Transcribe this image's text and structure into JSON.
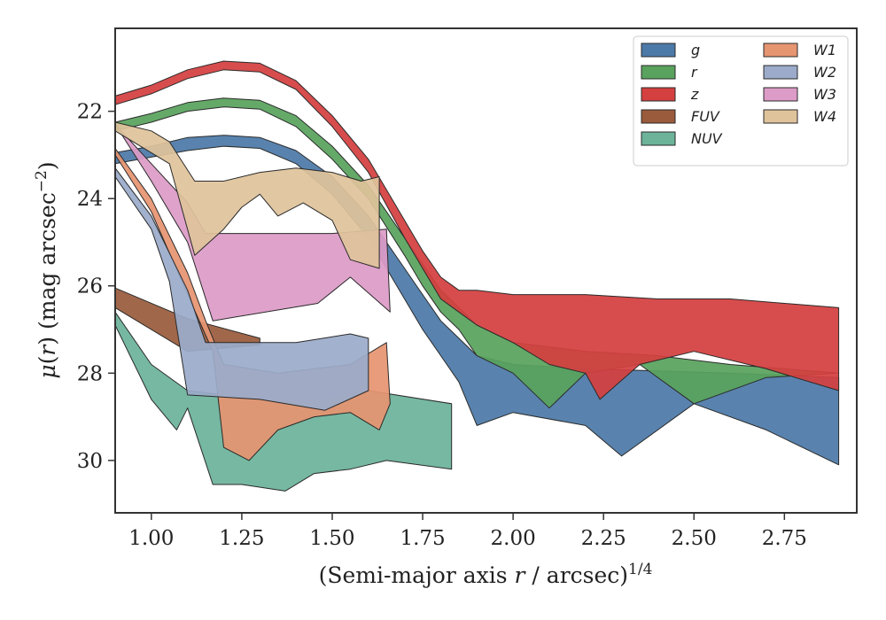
{
  "chart_data": {
    "type": "area",
    "xlabel": "(Semi-major axis r / arcsec)1/4",
    "ylabel": "μ(r) (mag arcsec−2)",
    "xlim": [
      0.9,
      2.95
    ],
    "ylim": [
      31.2,
      20.1
    ],
    "y_inverted": true,
    "xticks": [
      1.0,
      1.25,
      1.5,
      1.75,
      2.0,
      2.25,
      2.5,
      2.75
    ],
    "xtick_labels": [
      "1.00",
      "1.25",
      "1.50",
      "1.75",
      "2.00",
      "2.25",
      "2.50",
      "2.75"
    ],
    "yticks": [
      22,
      24,
      26,
      28,
      30
    ],
    "ytick_labels": [
      "22",
      "24",
      "26",
      "28",
      "30"
    ],
    "grid": false,
    "legend_position": "top-right",
    "legend_columns": 2,
    "series": [
      {
        "name": "g",
        "color": "#4c7aa8",
        "upper": [
          [
            0.9,
            22.95
          ],
          [
            1.0,
            22.8
          ],
          [
            1.1,
            22.6
          ],
          [
            1.2,
            22.55
          ],
          [
            1.3,
            22.6
          ],
          [
            1.4,
            22.9
          ],
          [
            1.5,
            23.5
          ],
          [
            1.6,
            24.4
          ],
          [
            1.7,
            25.6
          ],
          [
            1.75,
            26.2
          ],
          [
            1.8,
            26.8
          ],
          [
            1.85,
            27.2
          ],
          [
            1.9,
            27.6
          ],
          [
            2.0,
            27.8
          ],
          [
            2.2,
            27.9
          ],
          [
            2.4,
            27.95
          ],
          [
            2.6,
            28.0
          ],
          [
            2.9,
            28.1
          ]
        ],
        "lower": [
          [
            0.9,
            23.2
          ],
          [
            1.0,
            23.05
          ],
          [
            1.1,
            22.9
          ],
          [
            1.2,
            22.8
          ],
          [
            1.3,
            22.85
          ],
          [
            1.4,
            23.2
          ],
          [
            1.5,
            23.9
          ],
          [
            1.6,
            24.9
          ],
          [
            1.7,
            26.3
          ],
          [
            1.75,
            27.0
          ],
          [
            1.8,
            27.6
          ],
          [
            1.85,
            28.2
          ],
          [
            1.9,
            29.2
          ],
          [
            2.0,
            28.9
          ],
          [
            2.2,
            29.2
          ],
          [
            2.3,
            29.9
          ],
          [
            2.5,
            28.7
          ],
          [
            2.7,
            29.3
          ],
          [
            2.9,
            30.1
          ]
        ]
      },
      {
        "name": "r",
        "color": "#59a35e",
        "upper": [
          [
            0.9,
            22.25
          ],
          [
            1.0,
            22.05
          ],
          [
            1.1,
            21.8
          ],
          [
            1.2,
            21.7
          ],
          [
            1.3,
            21.75
          ],
          [
            1.4,
            22.1
          ],
          [
            1.5,
            22.8
          ],
          [
            1.6,
            23.7
          ],
          [
            1.7,
            24.9
          ],
          [
            1.75,
            25.5
          ],
          [
            1.8,
            26.1
          ],
          [
            1.85,
            26.5
          ],
          [
            1.9,
            26.9
          ],
          [
            2.0,
            27.3
          ],
          [
            2.2,
            27.5
          ],
          [
            2.4,
            27.6
          ],
          [
            2.6,
            27.8
          ],
          [
            2.9,
            28.0
          ]
        ],
        "lower": [
          [
            0.9,
            22.45
          ],
          [
            1.0,
            22.25
          ],
          [
            1.1,
            22.0
          ],
          [
            1.2,
            21.9
          ],
          [
            1.3,
            21.95
          ],
          [
            1.4,
            22.35
          ],
          [
            1.5,
            23.1
          ],
          [
            1.6,
            24.0
          ],
          [
            1.7,
            25.3
          ],
          [
            1.75,
            26.0
          ],
          [
            1.8,
            26.6
          ],
          [
            1.85,
            27.0
          ],
          [
            1.9,
            27.6
          ],
          [
            2.0,
            28.0
          ],
          [
            2.1,
            28.8
          ],
          [
            2.2,
            28.0
          ],
          [
            2.35,
            27.8
          ],
          [
            2.5,
            28.7
          ],
          [
            2.7,
            28.1
          ],
          [
            2.9,
            28.0
          ]
        ]
      },
      {
        "name": "z",
        "color": "#d43f3f",
        "upper": [
          [
            0.9,
            21.65
          ],
          [
            1.0,
            21.4
          ],
          [
            1.1,
            21.05
          ],
          [
            1.2,
            20.85
          ],
          [
            1.3,
            20.9
          ],
          [
            1.4,
            21.3
          ],
          [
            1.5,
            22.1
          ],
          [
            1.6,
            23.1
          ],
          [
            1.7,
            24.5
          ],
          [
            1.75,
            25.2
          ],
          [
            1.8,
            25.8
          ],
          [
            1.85,
            26.1
          ],
          [
            1.9,
            26.1
          ],
          [
            2.0,
            26.2
          ],
          [
            2.2,
            26.2
          ],
          [
            2.4,
            26.3
          ],
          [
            2.6,
            26.3
          ],
          [
            2.9,
            26.5
          ]
        ],
        "lower": [
          [
            0.9,
            21.85
          ],
          [
            1.0,
            21.6
          ],
          [
            1.1,
            21.25
          ],
          [
            1.2,
            21.05
          ],
          [
            1.3,
            21.1
          ],
          [
            1.4,
            21.5
          ],
          [
            1.5,
            22.35
          ],
          [
            1.6,
            23.4
          ],
          [
            1.7,
            24.9
          ],
          [
            1.75,
            25.6
          ],
          [
            1.8,
            26.3
          ],
          [
            1.85,
            26.6
          ],
          [
            1.9,
            26.9
          ],
          [
            2.0,
            27.3
          ],
          [
            2.1,
            27.8
          ],
          [
            2.2,
            28.0
          ],
          [
            2.24,
            28.6
          ],
          [
            2.35,
            27.8
          ],
          [
            2.5,
            27.5
          ],
          [
            2.7,
            27.9
          ],
          [
            2.9,
            28.4
          ]
        ]
      },
      {
        "name": "FUV",
        "color": "#9a5b3c",
        "upper": [
          [
            0.9,
            26.05
          ],
          [
            1.1,
            26.75
          ],
          [
            1.3,
            27.2
          ]
        ],
        "lower": [
          [
            0.9,
            26.5
          ],
          [
            1.1,
            27.5
          ],
          [
            1.3,
            27.35
          ]
        ]
      },
      {
        "name": "NUV",
        "color": "#6cb39a",
        "upper": [
          [
            0.9,
            26.6
          ],
          [
            1.0,
            27.8
          ],
          [
            1.1,
            28.4
          ],
          [
            1.2,
            28.5
          ],
          [
            1.4,
            28.7
          ],
          [
            1.6,
            28.4
          ],
          [
            1.83,
            28.7
          ]
        ],
        "lower": [
          [
            0.9,
            26.9
          ],
          [
            1.0,
            28.6
          ],
          [
            1.07,
            29.3
          ],
          [
            1.1,
            28.8
          ],
          [
            1.17,
            30.55
          ],
          [
            1.25,
            30.55
          ],
          [
            1.37,
            30.7
          ],
          [
            1.45,
            30.3
          ],
          [
            1.55,
            30.2
          ],
          [
            1.65,
            30.0
          ],
          [
            1.83,
            30.2
          ]
        ]
      },
      {
        "name": "W1",
        "color": "#e69571",
        "upper": [
          [
            0.9,
            22.85
          ],
          [
            1.0,
            24.0
          ],
          [
            1.1,
            25.7
          ],
          [
            1.15,
            26.8
          ],
          [
            1.2,
            27.8
          ],
          [
            1.35,
            28.0
          ],
          [
            1.45,
            27.9
          ],
          [
            1.55,
            27.8
          ],
          [
            1.65,
            27.3
          ]
        ],
        "lower": [
          [
            0.9,
            23.0
          ],
          [
            1.0,
            24.3
          ],
          [
            1.1,
            26.2
          ],
          [
            1.17,
            27.5
          ],
          [
            1.2,
            29.7
          ],
          [
            1.27,
            30.0
          ],
          [
            1.35,
            29.3
          ],
          [
            1.45,
            29.0
          ],
          [
            1.55,
            28.9
          ],
          [
            1.63,
            29.3
          ],
          [
            1.66,
            28.7
          ]
        ]
      },
      {
        "name": "W2",
        "color": "#9babc9",
        "upper": [
          [
            0.9,
            23.3
          ],
          [
            1.0,
            24.4
          ],
          [
            1.1,
            26.1
          ],
          [
            1.15,
            27.3
          ],
          [
            1.4,
            27.3
          ],
          [
            1.55,
            27.1
          ],
          [
            1.6,
            27.2
          ]
        ],
        "lower": [
          [
            0.9,
            23.5
          ],
          [
            1.0,
            24.7
          ],
          [
            1.05,
            25.9
          ],
          [
            1.1,
            28.5
          ],
          [
            1.3,
            28.6
          ],
          [
            1.48,
            28.85
          ],
          [
            1.6,
            28.4
          ]
        ]
      },
      {
        "name": "W3",
        "color": "#dd9bc7",
        "upper": [
          [
            0.9,
            22.3
          ],
          [
            1.0,
            23.2
          ],
          [
            1.1,
            24.1
          ],
          [
            1.15,
            24.8
          ],
          [
            1.5,
            24.8
          ],
          [
            1.65,
            24.7
          ]
        ],
        "lower": [
          [
            0.9,
            22.3
          ],
          [
            1.0,
            23.6
          ],
          [
            1.1,
            25.0
          ],
          [
            1.17,
            26.8
          ],
          [
            1.46,
            26.4
          ],
          [
            1.55,
            25.8
          ],
          [
            1.66,
            26.6
          ]
        ]
      },
      {
        "name": "W4",
        "color": "#dfc39b",
        "upper": [
          [
            0.9,
            22.25
          ],
          [
            1.0,
            22.45
          ],
          [
            1.05,
            22.7
          ],
          [
            1.12,
            23.6
          ],
          [
            1.2,
            23.6
          ],
          [
            1.3,
            23.4
          ],
          [
            1.4,
            23.3
          ],
          [
            1.5,
            23.4
          ],
          [
            1.58,
            23.6
          ],
          [
            1.63,
            23.5
          ]
        ],
        "lower": [
          [
            0.9,
            22.45
          ],
          [
            1.05,
            23.2
          ],
          [
            1.12,
            25.3
          ],
          [
            1.2,
            24.7
          ],
          [
            1.25,
            24.2
          ],
          [
            1.3,
            23.9
          ],
          [
            1.35,
            24.4
          ],
          [
            1.42,
            24.1
          ],
          [
            1.5,
            24.5
          ],
          [
            1.55,
            25.4
          ],
          [
            1.63,
            25.6
          ]
        ]
      }
    ]
  },
  "legend_labels": {
    "g": "g",
    "r": "r",
    "z": "z",
    "FUV": "FUV",
    "NUV": "NUV",
    "W1": "W1",
    "W2": "W2",
    "W3": "W3",
    "W4": "W4"
  }
}
